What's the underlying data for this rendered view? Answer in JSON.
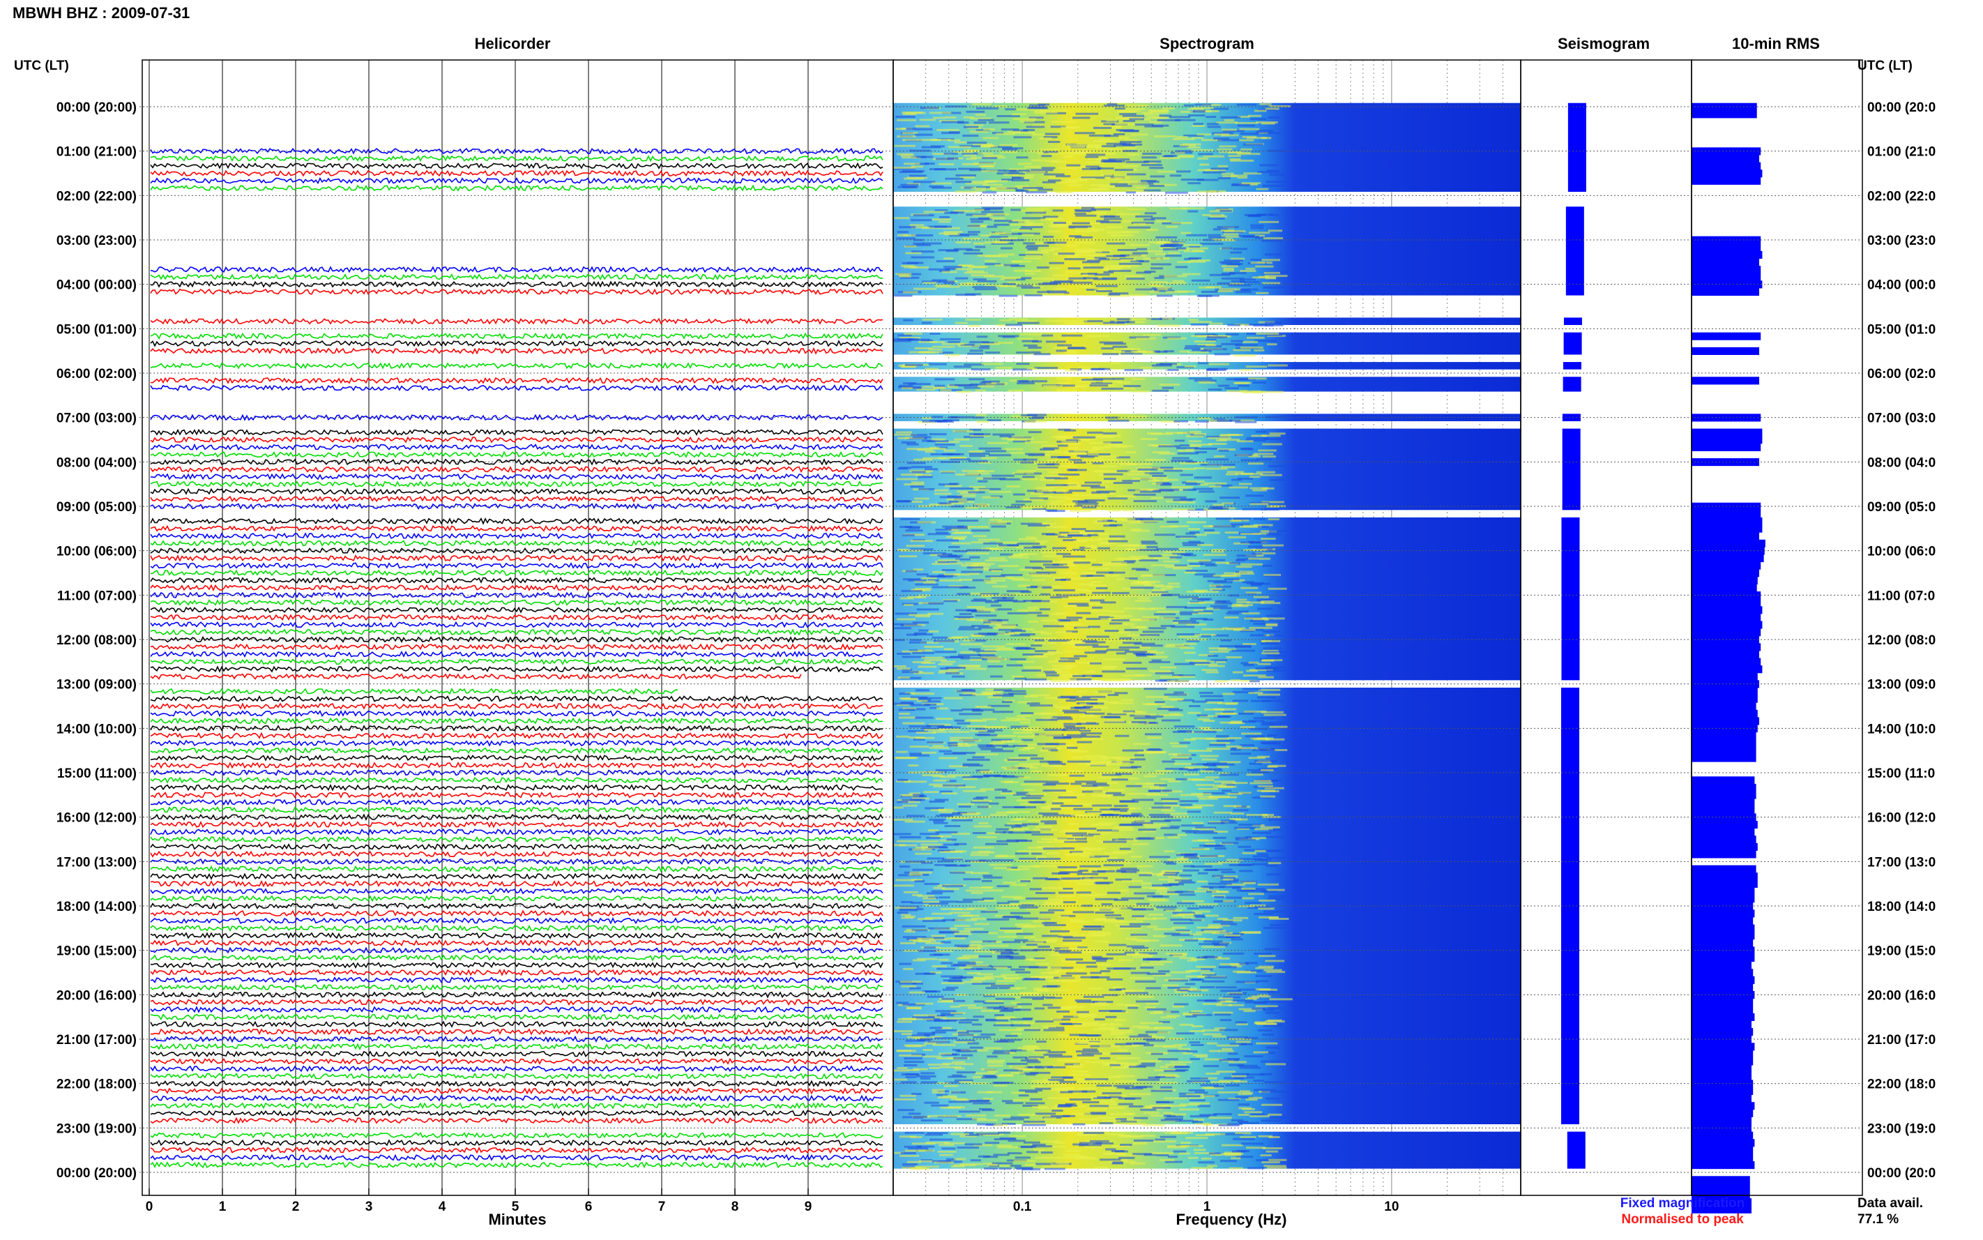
{
  "header": {
    "station_title": "MBWH BHZ : 2009-07-31"
  },
  "axis_labels": {
    "utc_left": "UTC (LT)",
    "utc_right": "UTC (LT)"
  },
  "panels": {
    "helicorder": "Helicorder",
    "spectrogram": "Spectrogram",
    "seismogram": "Seismogram",
    "rms": "10-min RMS"
  },
  "x_labels": {
    "minutes": "Minutes",
    "frequency": "Frequency (Hz)"
  },
  "legend": {
    "fixed": "Fixed magnification",
    "normalised": "Normalised to peak"
  },
  "availability": {
    "label": "Data avail.",
    "value": "77.1 %"
  },
  "colors": {
    "trace_cycle": [
      "#000000",
      "#ff0000",
      "#0000ff",
      "#00dd00"
    ],
    "spectrogram_background": "#0a2ad6",
    "spectrogram_energy": "#f2e81c",
    "seismogram": "#0000ff",
    "rms_bars": "#0000ff",
    "gridline": "#8a8a8a"
  },
  "chart_data": {
    "type": "table",
    "time_ticks": [
      "00:00 (20:00)",
      "01:00 (21:00)",
      "02:00 (22:00)",
      "03:00 (23:00)",
      "04:00 (00:00)",
      "05:00 (01:00)",
      "06:00 (02:00)",
      "07:00 (03:00)",
      "08:00 (04:00)",
      "09:00 (05:00)",
      "10:00 (06:00)",
      "11:00 (07:00)",
      "12:00 (08:00)",
      "13:00 (09:00)",
      "14:00 (10:00)",
      "15:00 (11:00)",
      "16:00 (12:00)",
      "17:00 (13:00)",
      "18:00 (14:00)",
      "19:00 (15:00)",
      "20:00 (16:00)",
      "21:00 (17:00)",
      "22:00 (18:00)",
      "23:00 (19:00)",
      "00:00 (20:00)"
    ],
    "right_time_ticks": [
      "00:00 (20:0",
      "01:00 (21:0",
      "02:00 (22:0",
      "03:00 (23:0",
      "04:00 (00:0",
      "05:00 (01:0",
      "06:00 (02:0",
      "07:00 (03:0",
      "08:00 (04:0",
      "09:00 (05:0",
      "10:00 (06:0",
      "11:00 (07:0",
      "12:00 (08:0",
      "13:00 (09:0",
      "14:00 (10:0",
      "15:00 (11:0",
      "16:00 (12:0",
      "17:00 (13:0",
      "18:00 (14:0",
      "19:00 (15:0",
      "20:00 (16:0",
      "21:00 (17:0",
      "22:00 (18:0",
      "23:00 (19:0",
      "00:00 (20:0"
    ],
    "minute_ticks": [
      0,
      1,
      2,
      3,
      4,
      5,
      6,
      7,
      8,
      9
    ],
    "minutes_range": [
      0,
      10
    ],
    "frequency_ticks": [
      "0.1",
      "1",
      "10"
    ],
    "frequency_range_hz": [
      0.02,
      50
    ],
    "frequency_log_scale": true,
    "helicorder_rows_10min": [
      0,
      0,
      0,
      0,
      0,
      0,
      1,
      1,
      1,
      1,
      1,
      1,
      -1,
      -1,
      0,
      0,
      0,
      0,
      0,
      0,
      0,
      0,
      1,
      1,
      1,
      1,
      -1,
      -1,
      -1,
      1,
      -1,
      1,
      1,
      1,
      -1,
      1,
      -1,
      1,
      1,
      -1,
      -1,
      -1,
      1,
      -1,
      1,
      1,
      1,
      1,
      1,
      1,
      1,
      1,
      1,
      1,
      1,
      -1,
      1,
      1,
      1,
      1,
      1,
      1,
      1,
      1,
      1,
      1,
      1,
      1,
      1,
      1,
      1,
      1,
      1,
      1,
      1,
      1,
      1,
      0.89,
      -1,
      0.72,
      1,
      1,
      1,
      1,
      1,
      1,
      1,
      1,
      1,
      1,
      1,
      1,
      1,
      1,
      1,
      1,
      1,
      1,
      1,
      1,
      1,
      1,
      1,
      1,
      1,
      1,
      1,
      1,
      1,
      1,
      1,
      1,
      1,
      1,
      1,
      1,
      1,
      1,
      1,
      1,
      1,
      1,
      1,
      1,
      1,
      1,
      1,
      1,
      1,
      1,
      1,
      1,
      1,
      1,
      1,
      1,
      1,
      1,
      -1,
      1,
      1,
      1,
      1,
      1
    ],
    "rms_relative_per_row": [
      0.85,
      0.85,
      -1,
      -1,
      -1,
      -1,
      0.9,
      0.88,
      0.9,
      0.92,
      0.9,
      -1,
      -1,
      -1,
      -1,
      -1,
      -1,
      -1,
      0.9,
      0.9,
      0.92,
      0.88,
      0.9,
      0.9,
      0.92,
      0.88,
      -1,
      -1,
      -1,
      -1,
      -1,
      0.9,
      -1,
      0.88,
      -1,
      -1,
      -1,
      0.88,
      -1,
      -1,
      -1,
      -1,
      0.9,
      -1,
      0.92,
      0.92,
      0.9,
      -1,
      0.88,
      -1,
      -1,
      -1,
      -1,
      -1,
      0.9,
      0.9,
      0.92,
      0.92,
      0.88,
      0.96,
      0.95,
      0.94,
      0.9,
      0.88,
      0.86,
      0.85,
      0.9,
      0.9,
      0.92,
      0.9,
      0.92,
      0.9,
      0.88,
      0.9,
      0.88,
      0.9,
      0.92,
      0.86,
      0.88,
      0.86,
      0.86,
      0.84,
      0.86,
      0.88,
      0.86,
      0.84,
      0.84,
      0.84,
      0.84,
      -1,
      -1,
      0.82,
      0.84,
      0.84,
      0.82,
      0.82,
      0.84,
      0.86,
      0.82,
      0.84,
      0.86,
      0.84,
      -1,
      0.84,
      0.86,
      0.86,
      0.82,
      0.82,
      0.8,
      0.82,
      0.8,
      0.82,
      0.82,
      0.8,
      0.82,
      0.82,
      0.78,
      0.8,
      0.82,
      0.8,
      0.82,
      0.8,
      0.8,
      0.82,
      0.78,
      0.8,
      0.78,
      0.82,
      0.8,
      0.8,
      0.78,
      0.78,
      0.8,
      0.8,
      0.78,
      0.82,
      0.8,
      0.78,
      0.78,
      0.8,
      0.82,
      0.8,
      0.8,
      0.82,
      -1,
      0.76,
      0.76,
      0.76,
      0.78,
      0.78
    ]
  }
}
